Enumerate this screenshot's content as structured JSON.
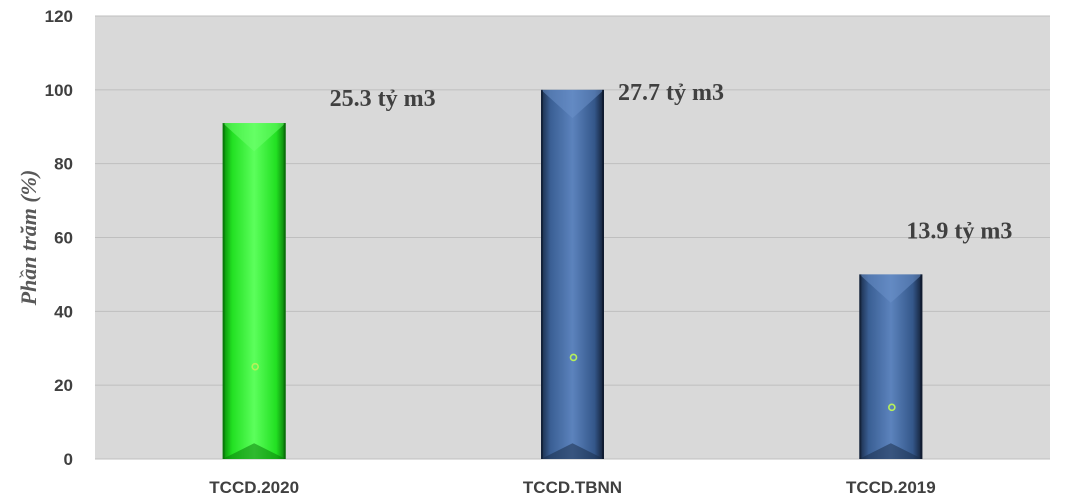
{
  "chart_data": {
    "type": "bar",
    "title": "",
    "xlabel": "",
    "ylabel": "Phần trăm (%)",
    "ylim": [
      0,
      120
    ],
    "yticks": [
      0,
      20,
      40,
      60,
      80,
      100,
      120
    ],
    "grid": true,
    "legend": "none",
    "categories": [
      "TCCD.2020",
      "TCCD.TBNN",
      "TCCD.2019"
    ],
    "values": [
      91,
      100,
      50
    ],
    "data_labels": [
      "25.3 tỷ m3",
      "27.7 tỷ m3",
      "13.9 tỷ m3"
    ],
    "markers": [
      25,
      27.5,
      14
    ],
    "bar_colors": [
      "#22dd22",
      "#3a5f94",
      "#3a5f94"
    ],
    "plot_background": "#d9d9d9",
    "gridline_color": "#bfbfbf",
    "marker_color": "#b6f05a"
  }
}
